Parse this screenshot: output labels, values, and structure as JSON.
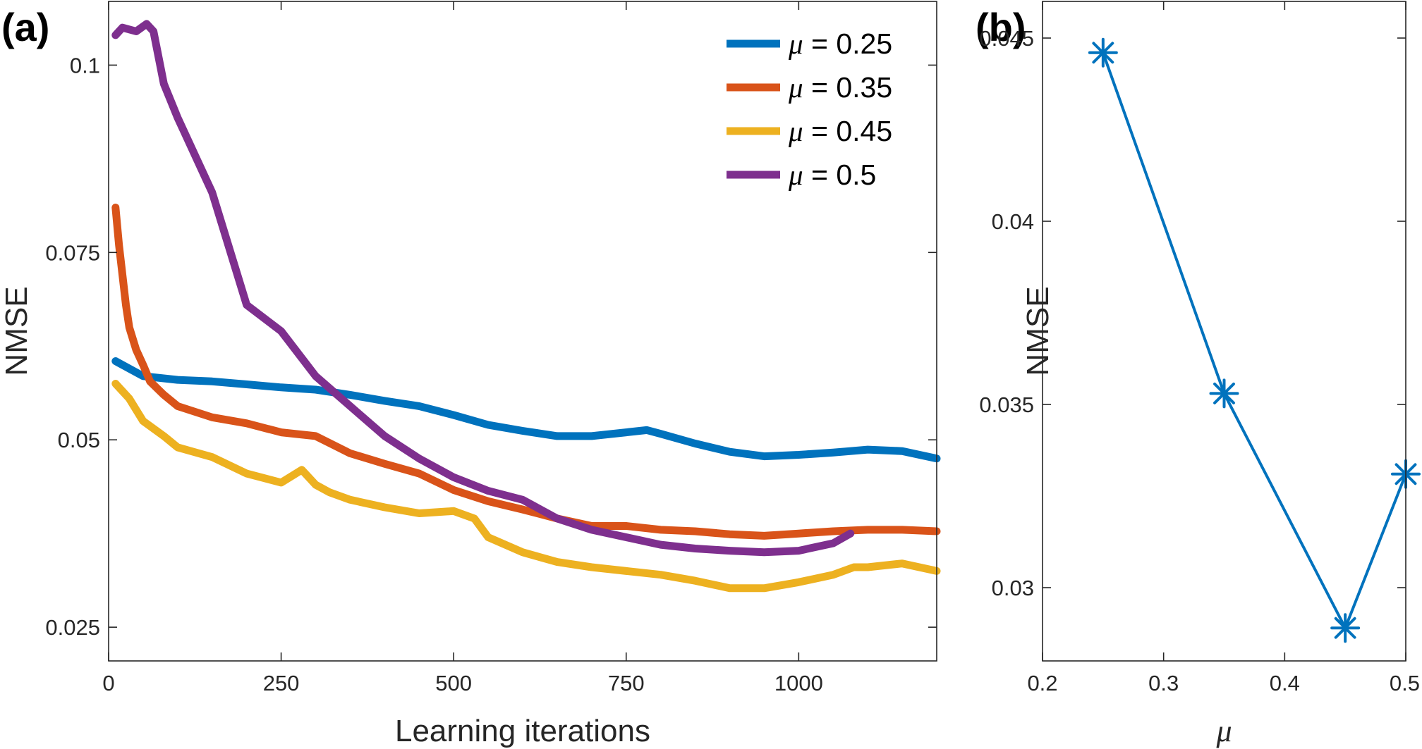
{
  "colors": {
    "series": [
      "#0072BD",
      "#D95319",
      "#EDB120",
      "#7E2F8E"
    ],
    "axis": "#262626",
    "background": "#ffffff"
  },
  "panel_a_label": "(a)",
  "panel_b_label": "(b)",
  "legend_symbol": "μ",
  "legend_eq": " = ",
  "chart_data": [
    {
      "panel": "(a)",
      "type": "line",
      "xlabel": "Learning iterations",
      "ylabel": "NMSE",
      "xlim": [
        0,
        1200
      ],
      "ylim": [
        0.0205,
        0.1085
      ],
      "xticks": [
        0,
        250,
        500,
        750,
        1000
      ],
      "xtick_labels": [
        "0",
        "250",
        "500",
        "750",
        "1000"
      ],
      "yticks": [
        0.025,
        0.05,
        0.075,
        0.1
      ],
      "ytick_labels": [
        "0.025",
        "0.05",
        "0.075",
        "0.1"
      ],
      "legend_position": "top-right",
      "grid": false,
      "series": [
        {
          "name": "μ = 0.25",
          "mu": "0.25",
          "x": [
            10,
            50,
            100,
            150,
            200,
            250,
            300,
            350,
            400,
            450,
            500,
            550,
            600,
            650,
            700,
            750,
            780,
            800,
            850,
            900,
            950,
            1000,
            1050,
            1100,
            1150,
            1200
          ],
          "y": [
            0.0605,
            0.0585,
            0.058,
            0.0578,
            0.0574,
            0.057,
            0.0567,
            0.056,
            0.0552,
            0.0545,
            0.0533,
            0.052,
            0.0512,
            0.0505,
            0.0505,
            0.051,
            0.0513,
            0.0508,
            0.0495,
            0.0484,
            0.0478,
            0.048,
            0.0483,
            0.0487,
            0.0485,
            0.0475
          ]
        },
        {
          "name": "μ = 0.35",
          "mu": "0.35",
          "x": [
            10,
            15,
            20,
            25,
            30,
            40,
            50,
            60,
            80,
            100,
            150,
            200,
            250,
            300,
            350,
            400,
            450,
            500,
            550,
            600,
            650,
            700,
            750,
            800,
            850,
            900,
            950,
            1000,
            1050,
            1100,
            1150,
            1200
          ],
          "y": [
            0.081,
            0.076,
            0.072,
            0.068,
            0.065,
            0.062,
            0.06,
            0.0578,
            0.056,
            0.0545,
            0.053,
            0.0522,
            0.051,
            0.0505,
            0.0482,
            0.0468,
            0.0455,
            0.0433,
            0.0418,
            0.0407,
            0.0395,
            0.0385,
            0.0385,
            0.038,
            0.0378,
            0.0374,
            0.0372,
            0.0375,
            0.0378,
            0.038,
            0.038,
            0.0378
          ]
        },
        {
          "name": "μ = 0.45",
          "mu": "0.45",
          "x": [
            10,
            30,
            50,
            80,
            100,
            150,
            200,
            250,
            280,
            300,
            320,
            350,
            400,
            450,
            500,
            530,
            550,
            600,
            650,
            700,
            750,
            800,
            850,
            900,
            950,
            1000,
            1050,
            1080,
            1100,
            1150,
            1200
          ],
          "y": [
            0.0575,
            0.0555,
            0.0525,
            0.0505,
            0.049,
            0.0477,
            0.0455,
            0.0443,
            0.046,
            0.044,
            0.043,
            0.042,
            0.041,
            0.0402,
            0.0405,
            0.0395,
            0.037,
            0.035,
            0.0337,
            0.033,
            0.0325,
            0.032,
            0.0312,
            0.0302,
            0.0302,
            0.031,
            0.032,
            0.033,
            0.033,
            0.0335,
            0.0325
          ]
        },
        {
          "name": "μ = 0.5",
          "mu": "0.5",
          "x": [
            10,
            20,
            40,
            55,
            65,
            80,
            100,
            150,
            200,
            250,
            300,
            350,
            400,
            450,
            500,
            550,
            600,
            650,
            700,
            750,
            800,
            850,
            900,
            950,
            1000,
            1050,
            1075
          ],
          "y": [
            0.104,
            0.105,
            0.1045,
            0.1055,
            0.1045,
            0.0975,
            0.093,
            0.083,
            0.068,
            0.0645,
            0.0585,
            0.0545,
            0.0505,
            0.0475,
            0.045,
            0.0432,
            0.042,
            0.0395,
            0.038,
            0.037,
            0.036,
            0.0355,
            0.0352,
            0.035,
            0.0352,
            0.0362,
            0.0375
          ]
        }
      ]
    },
    {
      "panel": "(b)",
      "type": "line",
      "marker": "asterisk",
      "xlabel": "μ",
      "ylabel": "NMSE",
      "xlim": [
        0.2,
        0.5
      ],
      "ylim": [
        0.028,
        0.046
      ],
      "xticks": [
        0.2,
        0.3,
        0.4,
        0.5
      ],
      "xtick_labels": [
        "0.2",
        "0.3",
        "0.4",
        "0.5"
      ],
      "yticks": [
        0.03,
        0.035,
        0.04,
        0.045
      ],
      "ytick_labels": [
        "0.03",
        "0.035",
        "0.04",
        "0.045"
      ],
      "grid": false,
      "x": [
        0.25,
        0.35,
        0.45,
        0.5
      ],
      "y": [
        0.0446,
        0.0353,
        0.0289,
        0.0331
      ]
    }
  ]
}
